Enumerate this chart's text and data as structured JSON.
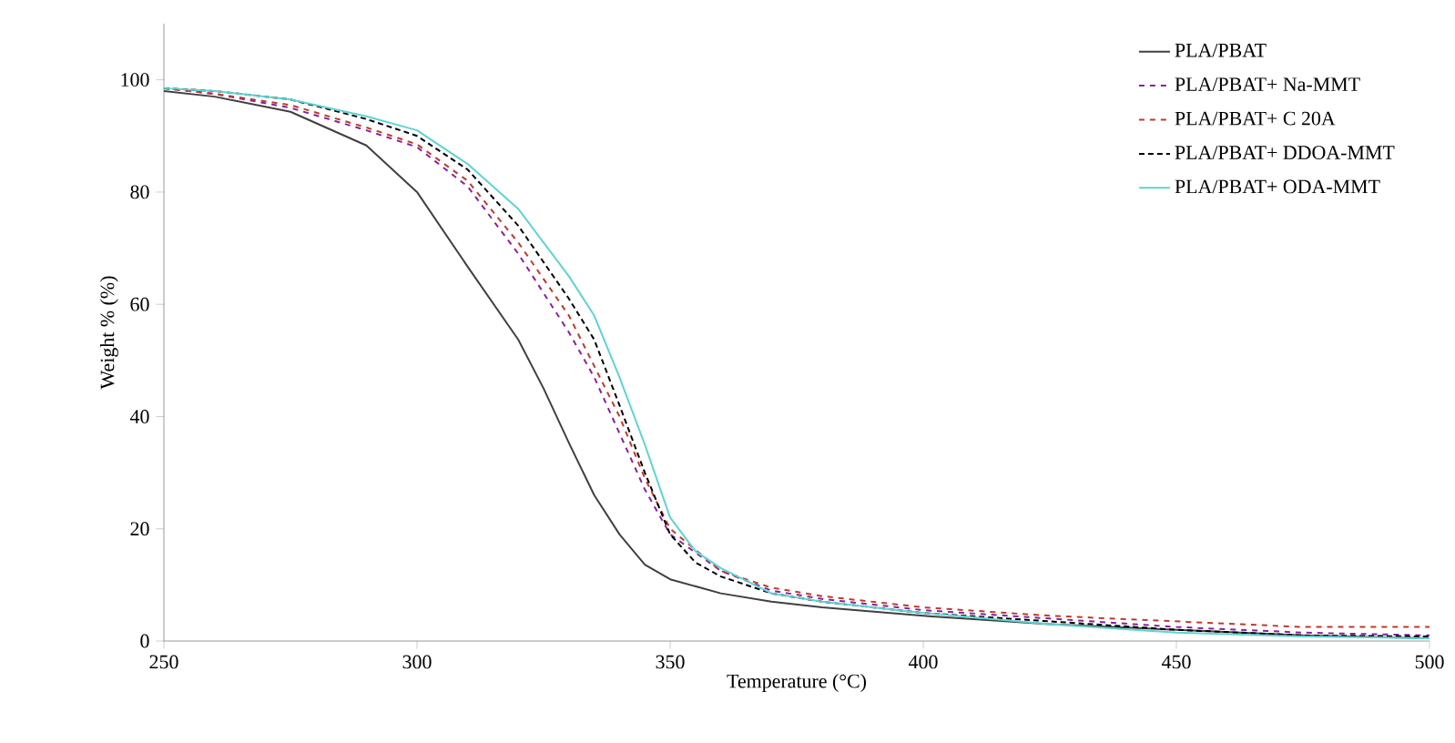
{
  "chart_data": {
    "type": "line",
    "xlabel": "Temperature (°C)",
    "ylabel": "Weight % (%)",
    "xlim": [
      250,
      500
    ],
    "xticks": [
      250,
      300,
      350,
      400,
      450,
      500
    ],
    "ylim": [
      0,
      110
    ],
    "yticks": [
      0,
      20,
      40,
      60,
      80,
      100
    ],
    "legend": "top right",
    "series": [
      {
        "name": "PLA/PBAT",
        "color": "#404040",
        "line_style": "solid",
        "x": [
          250,
          260,
          275,
          290,
          300,
          310,
          320,
          325,
          330,
          335,
          340,
          345,
          350,
          360,
          370,
          380,
          400,
          425,
          450,
          475,
          500
        ],
        "values": [
          98,
          97,
          94.3,
          88.3,
          80,
          66.7,
          53.7,
          45,
          35.3,
          26,
          19,
          13.6,
          11,
          8.5,
          7,
          6,
          4.5,
          3,
          2,
          1,
          0.5
        ]
      },
      {
        "name": "PLA/PBAT+ Na-MMT",
        "color": "#8b1fa0",
        "line_style": "dashed",
        "x": [
          250,
          260,
          275,
          290,
          300,
          310,
          320,
          330,
          335,
          340,
          345,
          350,
          360,
          370,
          380,
          400,
          425,
          450,
          475,
          500
        ],
        "values": [
          98.5,
          97.5,
          95,
          91,
          88,
          81,
          69,
          55,
          47,
          37,
          27,
          19,
          12.5,
          9,
          7.5,
          5.5,
          4,
          2.5,
          1.5,
          1
        ]
      },
      {
        "name": "PLA/PBAT+ C 20A",
        "color": "#c0392b",
        "line_style": "dashed",
        "x": [
          250,
          260,
          275,
          290,
          300,
          310,
          320,
          330,
          340,
          345,
          350,
          360,
          370,
          380,
          400,
          425,
          450,
          475,
          500
        ],
        "values": [
          98.5,
          97.5,
          95.5,
          91.5,
          88.5,
          82,
          71,
          58,
          40,
          29,
          20,
          12.5,
          9.5,
          8,
          6,
          4.5,
          3.5,
          2.5,
          2.5
        ]
      },
      {
        "name": "PLA/PBAT+ DDOA-MMT",
        "color": "#000000",
        "line_style": "dotted",
        "x": [
          250,
          260,
          275,
          290,
          300,
          310,
          320,
          330,
          335,
          340,
          345,
          350,
          355,
          360,
          370,
          380,
          400,
          425,
          450,
          475,
          500
        ],
        "values": [
          98.5,
          98,
          96.5,
          93,
          90,
          84,
          74,
          61,
          53.7,
          42,
          30,
          19,
          14,
          11.5,
          8.5,
          7,
          5,
          3.5,
          2,
          1,
          0.8
        ]
      },
      {
        "name": "PLA/PBAT+ ODA-MMT",
        "color": "#5fd3d3",
        "line_style": "solid",
        "x": [
          250,
          260,
          275,
          290,
          300,
          310,
          320,
          330,
          335,
          340,
          345,
          350,
          355,
          360,
          370,
          380,
          400,
          425,
          450,
          475,
          500
        ],
        "values": [
          98.5,
          98,
          96.5,
          93.5,
          91,
          85,
          77,
          65,
          58,
          47,
          35,
          22,
          16,
          13,
          8.5,
          7,
          5,
          3,
          1.5,
          0.8,
          0.5
        ]
      }
    ]
  }
}
